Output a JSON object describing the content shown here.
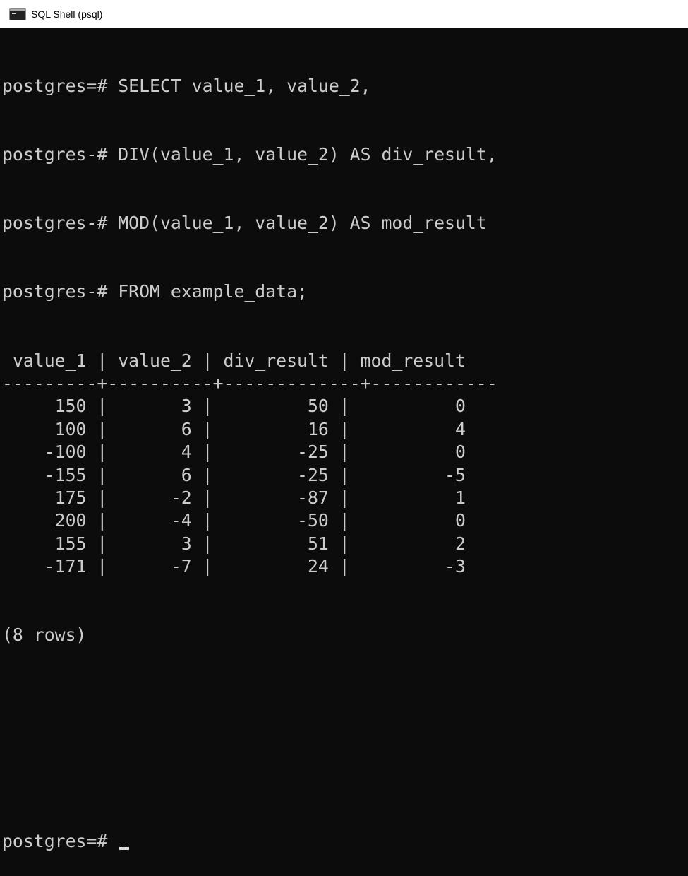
{
  "window": {
    "title": "SQL Shell (psql)",
    "icon": "terminal-icon"
  },
  "prompt": "postgres=# ",
  "continuation_prompt": "postgres-# ",
  "query_lines": [
    "SELECT value_1, value_2,",
    "DIV(value_1, value_2) AS div_result,",
    "MOD(value_1, value_2) AS mod_result",
    "FROM example_data;"
  ],
  "table": {
    "columns": [
      "value_1",
      "value_2",
      "div_result",
      "mod_result"
    ],
    "rows": [
      [
        "150",
        "3",
        "50",
        "0"
      ],
      [
        "100",
        "6",
        "16",
        "4"
      ],
      [
        "-100",
        "4",
        "-25",
        "0"
      ],
      [
        "-155",
        "6",
        "-25",
        "-5"
      ],
      [
        "175",
        "-2",
        "-87",
        "1"
      ],
      [
        "200",
        "-4",
        "-50",
        "0"
      ],
      [
        "155",
        "3",
        "51",
        "2"
      ],
      [
        "-171",
        "-7",
        "24",
        "-3"
      ]
    ],
    "row_count": "(8 rows)"
  },
  "colors": {
    "background": "#0c0c0c",
    "text": "#cccccc"
  }
}
